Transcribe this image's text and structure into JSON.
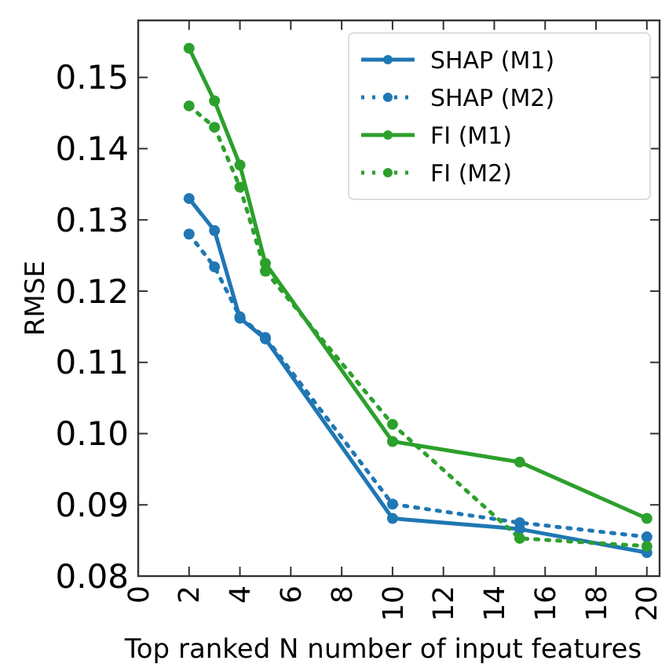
{
  "chart_data": {
    "type": "line",
    "xlabel": "Top ranked N number of input features",
    "ylabel": "RMSE",
    "x": [
      2,
      3,
      4,
      5,
      10,
      15,
      20
    ],
    "series": [
      {
        "name": "SHAP (M1)",
        "color": "#1f77b4",
        "line_style": "solid",
        "values": [
          0.133,
          0.1285,
          0.1162,
          0.1133,
          0.0881,
          0.0866,
          0.0833
        ]
      },
      {
        "name": "SHAP (M2)",
        "color": "#1f77b4",
        "line_style": "dotted",
        "values": [
          0.128,
          0.1234,
          0.1164,
          0.1135,
          0.0901,
          0.0875,
          0.0855
        ]
      },
      {
        "name": "FI (M1)",
        "color": "#2ca02c",
        "line_style": "solid",
        "values": [
          0.1541,
          0.1467,
          0.1377,
          0.1239,
          0.0989,
          0.096,
          0.0881
        ]
      },
      {
        "name": "FI (M2)",
        "color": "#2ca02c",
        "line_style": "dotted",
        "values": [
          0.146,
          0.143,
          0.1346,
          0.1228,
          0.1013,
          0.0853,
          0.0842
        ]
      }
    ],
    "xlim": [
      0,
      20.5
    ],
    "xticks": [
      0,
      2,
      4,
      6,
      8,
      10,
      12,
      14,
      16,
      18,
      20
    ],
    "ylim": [
      0.08,
      0.158
    ],
    "yticks": [
      {
        "value": 0.08,
        "label": "0.08"
      },
      {
        "value": 0.09,
        "label": "0.09"
      },
      {
        "value": 0.1,
        "label": "0.10"
      },
      {
        "value": 0.11,
        "label": "0.11"
      },
      {
        "value": 0.12,
        "label": "0.12"
      },
      {
        "value": 0.13,
        "label": "0.13"
      },
      {
        "value": 0.14,
        "label": "0.14"
      },
      {
        "value": 0.15,
        "label": "0.15"
      }
    ],
    "marker": "circle",
    "legend": "top right",
    "grid": false
  }
}
